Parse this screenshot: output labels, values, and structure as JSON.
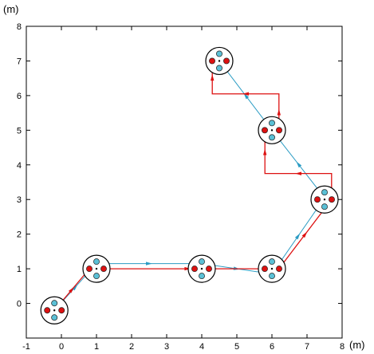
{
  "chart_data": {
    "type": "scatter",
    "title": "",
    "xlabel": "(m)",
    "ylabel": "(m)",
    "xlim": [
      -1,
      8
    ],
    "ylim": [
      -1,
      8
    ],
    "x_ticks": [
      -1,
      0,
      1,
      2,
      3,
      4,
      5,
      6,
      7,
      8
    ],
    "y_ticks": [
      0,
      1,
      2,
      3,
      4,
      5,
      6,
      7,
      8
    ],
    "x_tick_labels": [
      "-1",
      "0",
      "1",
      "2",
      "3",
      "4",
      "5",
      "6",
      "7",
      "8"
    ],
    "y_tick_labels": [
      "0",
      "1",
      "2",
      "3",
      "4",
      "5",
      "6",
      "7",
      "8"
    ],
    "grid": false,
    "robot_positions": [
      {
        "x": -0.2,
        "y": -0.2
      },
      {
        "x": 1.0,
        "y": 1.0
      },
      {
        "x": 4.0,
        "y": 1.0
      },
      {
        "x": 6.0,
        "y": 1.0
      },
      {
        "x": 7.5,
        "y": 3.0
      },
      {
        "x": 6.0,
        "y": 5.0
      },
      {
        "x": 4.5,
        "y": 7.0
      }
    ],
    "series": [
      {
        "color": "#2b9cc4",
        "points": [
          [
            -0.2,
            -0.2
          ],
          [
            1.0,
            1.15
          ],
          [
            4.0,
            1.15
          ],
          [
            6.0,
            0.85
          ],
          [
            7.5,
            3.05
          ],
          [
            6.0,
            5.0
          ],
          [
            4.5,
            7.0
          ]
        ]
      },
      {
        "color": "#dd1111",
        "points": [
          [
            -0.2,
            -0.2
          ],
          [
            0.8,
            1.0
          ],
          [
            1.0,
            1.0
          ],
          [
            6.2,
            1.0
          ],
          [
            7.7,
            3.0
          ],
          [
            7.7,
            3.75
          ],
          [
            5.8,
            3.75
          ],
          [
            5.8,
            5.0
          ],
          [
            6.2,
            5.0
          ],
          [
            6.2,
            6.05
          ],
          [
            4.3,
            6.05
          ],
          [
            4.3,
            7.0
          ]
        ]
      }
    ],
    "colors": {
      "axis": "#000000",
      "circle_outline": "#000000",
      "red_wheel": "#dd1111",
      "blue_wheel": "#5bc0d6",
      "wheel_outline": "#222222"
    }
  }
}
